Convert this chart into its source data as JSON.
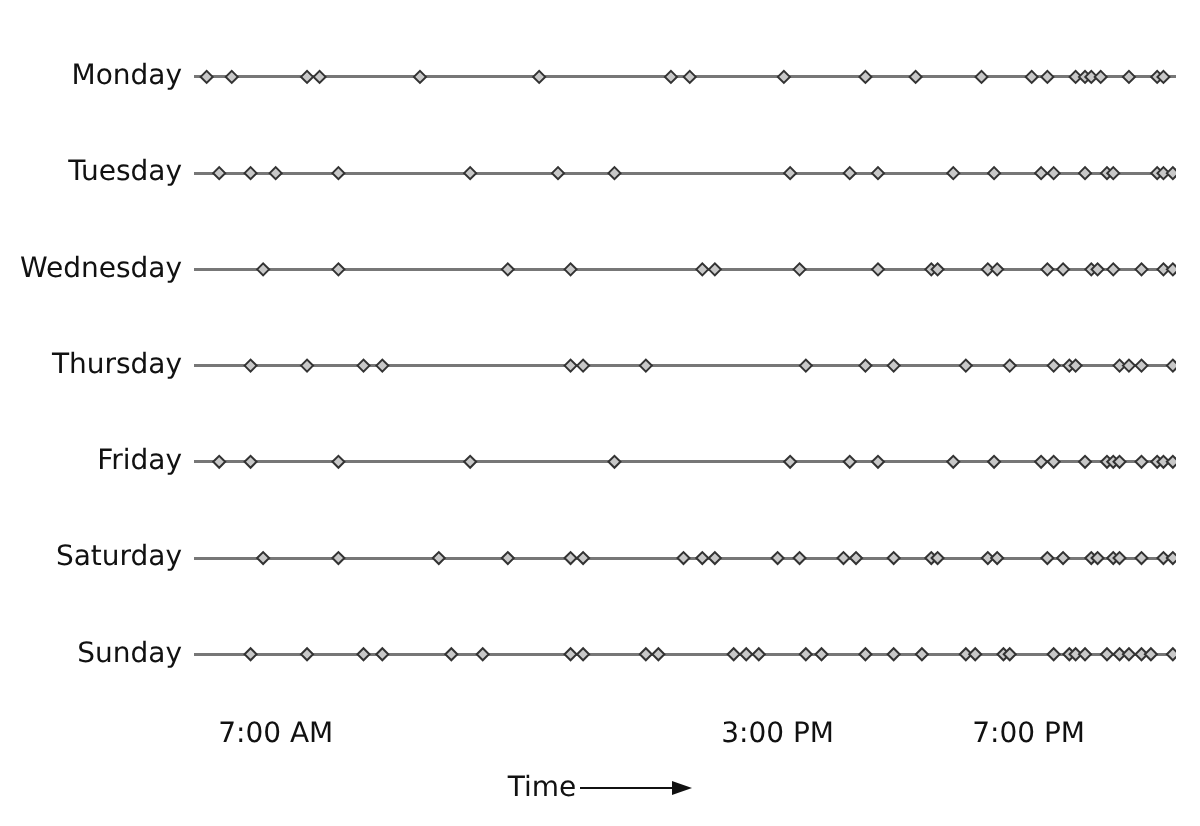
{
  "chart_data": {
    "type": "scatter",
    "orientation": "horizontal",
    "xlabel": "Time",
    "categories": [
      "Monday",
      "Tuesday",
      "Wednesday",
      "Thursday",
      "Friday",
      "Saturday",
      "Sunday"
    ],
    "xlim": [
      5.7,
      21.35
    ],
    "xticks": [
      {
        "value": 7,
        "label": "7:00 AM"
      },
      {
        "value": 15,
        "label": "3:00 PM"
      },
      {
        "value": 19,
        "label": "7:00 PM"
      }
    ],
    "grid": "y",
    "marker": "diamond",
    "series": [
      {
        "color": "#c8c8c8",
        "values": [
          5.9,
          6.3,
          7.5,
          7.7,
          9.3,
          11.2,
          13.3,
          13.6,
          15.1,
          16.4,
          17.2,
          18.25,
          19.05,
          19.3,
          19.75,
          19.9,
          20.0,
          20.15,
          20.6,
          21.05,
          21.15
        ],
        "x": [
          "Monday",
          "Monday",
          "Monday",
          "Monday",
          "Monday",
          "Monday",
          "Monday",
          "Monday",
          "Monday",
          "Monday",
          "Monday",
          "Monday",
          "Monday",
          "Monday",
          "Monday",
          "Monday",
          "Monday",
          "Monday",
          "Monday",
          "Monday",
          "Monday"
        ]
      },
      {
        "color": "#c8c8c8",
        "values": [
          6.1,
          6.6,
          7.0,
          8.0,
          10.1,
          11.5,
          12.4,
          15.2,
          16.15,
          16.6,
          17.8,
          18.45,
          19.2,
          19.4,
          19.9,
          20.25,
          20.35,
          21.05,
          21.15,
          21.3
        ],
        "x": [
          "Tuesday",
          "Tuesday",
          "Tuesday",
          "Tuesday",
          "Tuesday",
          "Tuesday",
          "Tuesday",
          "Tuesday",
          "Tuesday",
          "Tuesday",
          "Tuesday",
          "Tuesday",
          "Tuesday",
          "Tuesday",
          "Tuesday",
          "Tuesday",
          "Tuesday",
          "Tuesday",
          "Tuesday",
          "Tuesday"
        ]
      },
      {
        "color": "#c8c8c8",
        "values": [
          6.8,
          8.0,
          10.7,
          11.7,
          13.8,
          14.0,
          15.35,
          16.6,
          17.45,
          17.55,
          18.35,
          18.5,
          19.3,
          19.55,
          20.0,
          20.1,
          20.35,
          20.8,
          21.15,
          21.3
        ],
        "x": [
          "Wednesday",
          "Wednesday",
          "Wednesday",
          "Wednesday",
          "Wednesday",
          "Wednesday",
          "Wednesday",
          "Wednesday",
          "Wednesday",
          "Wednesday",
          "Wednesday",
          "Wednesday",
          "Wednesday",
          "Wednesday",
          "Wednesday",
          "Wednesday",
          "Wednesday",
          "Wednesday",
          "Wednesday",
          "Wednesday"
        ]
      },
      {
        "color": "#c8c8c8",
        "values": [
          6.6,
          7.5,
          8.4,
          8.7,
          11.7,
          11.9,
          12.9,
          15.45,
          16.4,
          16.85,
          18.0,
          18.7,
          19.4,
          19.65,
          19.75,
          20.45,
          20.6,
          20.8,
          21.3
        ],
        "x": [
          "Thursday",
          "Thursday",
          "Thursday",
          "Thursday",
          "Thursday",
          "Thursday",
          "Thursday",
          "Thursday",
          "Thursday",
          "Thursday",
          "Thursday",
          "Thursday",
          "Thursday",
          "Thursday",
          "Thursday",
          "Thursday",
          "Thursday",
          "Thursday",
          "Thursday"
        ]
      },
      {
        "color": "#c8c8c8",
        "values": [
          6.1,
          6.6,
          8.0,
          10.1,
          12.4,
          15.2,
          16.15,
          16.6,
          17.8,
          18.45,
          19.2,
          19.4,
          19.9,
          20.25,
          20.35,
          20.45,
          20.8,
          21.05,
          21.15,
          21.3
        ],
        "x": [
          "Friday",
          "Friday",
          "Friday",
          "Friday",
          "Friday",
          "Friday",
          "Friday",
          "Friday",
          "Friday",
          "Friday",
          "Friday",
          "Friday",
          "Friday",
          "Friday",
          "Friday",
          "Friday",
          "Friday",
          "Friday",
          "Friday",
          "Friday"
        ]
      },
      {
        "color": "#c8c8c8",
        "values": [
          6.8,
          8.0,
          9.6,
          10.7,
          11.7,
          11.9,
          13.5,
          13.8,
          14.0,
          15.0,
          15.35,
          16.05,
          16.25,
          16.85,
          17.45,
          17.55,
          18.35,
          18.5,
          19.3,
          19.55,
          20.0,
          20.1,
          20.35,
          20.45,
          20.8,
          21.15,
          21.3
        ],
        "x": [
          "Saturday",
          "Saturday",
          "Saturday",
          "Saturday",
          "Saturday",
          "Saturday",
          "Saturday",
          "Saturday",
          "Saturday",
          "Saturday",
          "Saturday",
          "Saturday",
          "Saturday",
          "Saturday",
          "Saturday",
          "Saturday",
          "Saturday",
          "Saturday",
          "Saturday",
          "Saturday",
          "Saturday",
          "Saturday",
          "Saturday",
          "Saturday",
          "Saturday",
          "Saturday",
          "Saturday"
        ]
      },
      {
        "color": "#c8c8c8",
        "values": [
          6.6,
          7.5,
          8.4,
          8.7,
          9.8,
          10.3,
          11.7,
          11.9,
          12.9,
          13.1,
          14.3,
          14.5,
          14.7,
          15.45,
          15.7,
          16.4,
          16.85,
          17.3,
          18.0,
          18.15,
          18.6,
          18.7,
          19.4,
          19.65,
          19.75,
          19.9,
          20.25,
          20.45,
          20.6,
          20.8,
          20.95,
          21.3
        ],
        "x": [
          "Sunday",
          "Sunday",
          "Sunday",
          "Sunday",
          "Sunday",
          "Sunday",
          "Sunday",
          "Sunday",
          "Sunday",
          "Sunday",
          "Sunday",
          "Sunday",
          "Sunday",
          "Sunday",
          "Sunday",
          "Sunday",
          "Sunday",
          "Sunday",
          "Sunday",
          "Sunday",
          "Sunday",
          "Sunday",
          "Sunday",
          "Sunday",
          "Sunday",
          "Sunday",
          "Sunday",
          "Sunday",
          "Sunday",
          "Sunday",
          "Sunday",
          "Sunday"
        ]
      }
    ]
  }
}
